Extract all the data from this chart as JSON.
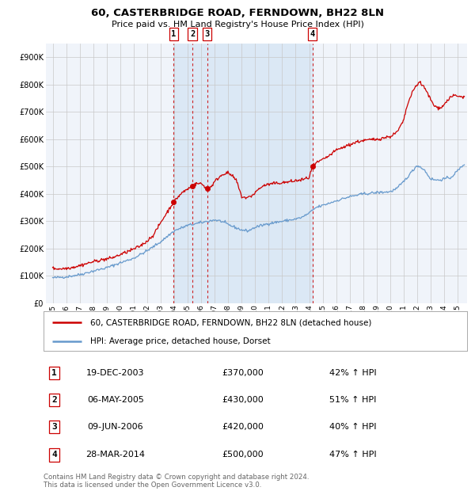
{
  "title": "60, CASTERBRIDGE ROAD, FERNDOWN, BH22 8LN",
  "subtitle": "Price paid vs. HM Land Registry's House Price Index (HPI)",
  "legend_line1": "60, CASTERBRIDGE ROAD, FERNDOWN, BH22 8LN (detached house)",
  "legend_line2": "HPI: Average price, detached house, Dorset",
  "footer1": "Contains HM Land Registry data © Crown copyright and database right 2024.",
  "footer2": "This data is licensed under the Open Government Licence v3.0.",
  "red_color": "#cc0000",
  "blue_color": "#6699cc",
  "background_color": "#ffffff",
  "plot_bg_color": "#f0f4fa",
  "shade_color": "#dbe8f5",
  "grid_color": "#c8c8c8",
  "ylim": [
    0,
    950000
  ],
  "yticks": [
    0,
    100000,
    200000,
    300000,
    400000,
    500000,
    600000,
    700000,
    800000,
    900000
  ],
  "ytick_labels": [
    "£0",
    "£100K",
    "£200K",
    "£300K",
    "£400K",
    "£500K",
    "£600K",
    "£700K",
    "£800K",
    "£900K"
  ],
  "xmin": 1994.5,
  "xmax": 2025.7,
  "transactions": [
    {
      "num": 1,
      "date": "19-DEC-2003",
      "price": 370000,
      "pct": "42%",
      "x": 2003.96
    },
    {
      "num": 2,
      "date": "06-MAY-2005",
      "price": 430000,
      "pct": "51%",
      "x": 2005.35
    },
    {
      "num": 3,
      "date": "09-JUN-2006",
      "price": 420000,
      "pct": "40%",
      "x": 2006.44
    },
    {
      "num": 4,
      "date": "28-MAR-2014",
      "price": 500000,
      "pct": "47%",
      "x": 2014.24
    }
  ],
  "xtick_years": [
    1995,
    1996,
    1997,
    1998,
    1999,
    2000,
    2001,
    2002,
    2003,
    2004,
    2005,
    2006,
    2007,
    2008,
    2009,
    2010,
    2011,
    2012,
    2013,
    2014,
    2015,
    2016,
    2017,
    2018,
    2019,
    2020,
    2021,
    2022,
    2023,
    2024,
    2025
  ],
  "table_rows": [
    {
      "num": "1",
      "date": "19-DEC-2003",
      "price": "£370,000",
      "info": "42% ↑ HPI"
    },
    {
      "num": "2",
      "date": "06-MAY-2005",
      "price": "£430,000",
      "info": "51% ↑ HPI"
    },
    {
      "num": "3",
      "date": "09-JUN-2006",
      "price": "£420,000",
      "info": "40% ↑ HPI"
    },
    {
      "num": "4",
      "date": "28-MAR-2014",
      "price": "£500,000",
      "info": "47% ↑ HPI"
    }
  ]
}
